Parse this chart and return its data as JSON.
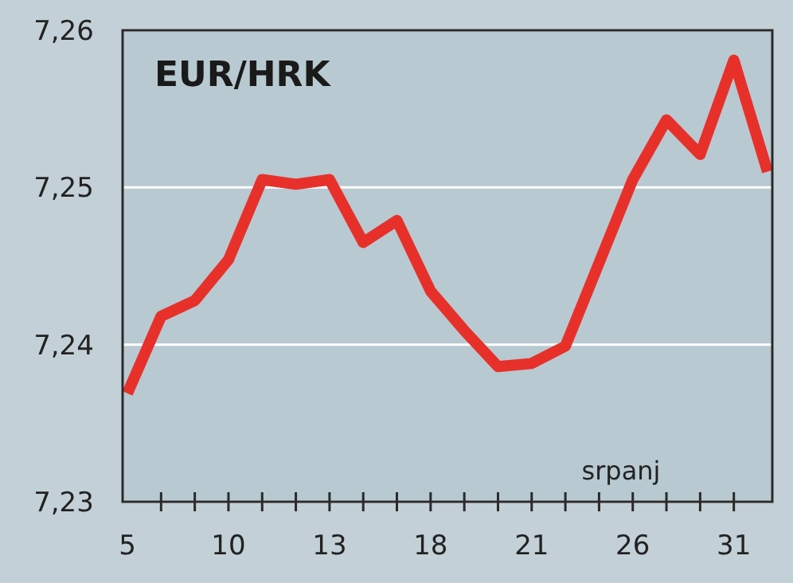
{
  "chart_data": {
    "type": "line",
    "title": "EUR/HRK",
    "xlabel": "srpanj",
    "categories": [
      "5",
      null,
      null,
      "10",
      null,
      null,
      "13",
      null,
      null,
      "18",
      null,
      null,
      "21",
      null,
      null,
      "26",
      null,
      null,
      "31",
      null
    ],
    "series": [
      {
        "color": "#e8302a",
        "values": [
          7.2369,
          7.2418,
          7.2428,
          7.2454,
          7.2505,
          7.2502,
          7.2505,
          7.2465,
          7.2479,
          7.2434,
          7.2409,
          7.2386,
          7.2388,
          7.2399,
          7.2452,
          7.2505,
          7.2543,
          7.2521,
          7.2581,
          7.251
        ]
      }
    ],
    "ylim": [
      7.23,
      7.26
    ],
    "yticks": [
      {
        "value": 7.23,
        "label": "7,23"
      },
      {
        "value": 7.24,
        "label": "7,24"
      },
      {
        "value": 7.25,
        "label": "7,25"
      },
      {
        "value": 7.26,
        "label": "7,26"
      }
    ],
    "grid": "y",
    "marker": "none",
    "line_style": "solid"
  }
}
